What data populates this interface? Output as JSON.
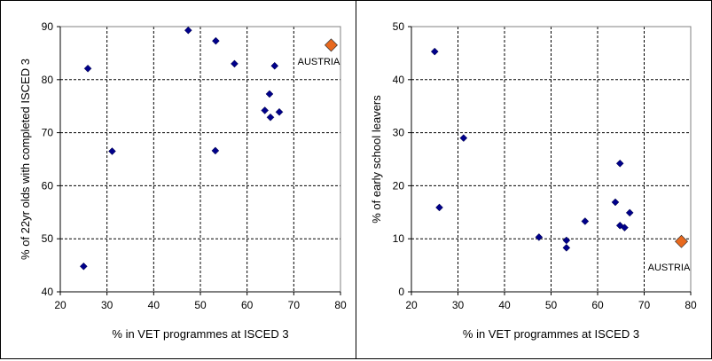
{
  "chart_data": [
    {
      "type": "scatter",
      "xlabel": "% in VET programmes at ISCED 3",
      "ylabel": "% of 22yr olds with completed ISCED 3",
      "xlim": [
        20,
        80
      ],
      "ylim": [
        40,
        90
      ],
      "xticks": [
        "20",
        "30",
        "40",
        "50",
        "60",
        "70",
        "80"
      ],
      "yticks": [
        "40",
        "50",
        "60",
        "70",
        "80",
        "90"
      ],
      "grid": true,
      "colors": {
        "points": "#00008B",
        "highlight": "#E8691E"
      },
      "points": [
        {
          "x": 25,
          "y": 44.8
        },
        {
          "x": 25.9,
          "y": 82.1
        },
        {
          "x": 31.1,
          "y": 66.5
        },
        {
          "x": 47.4,
          "y": 89.3
        },
        {
          "x": 53.3,
          "y": 87.3
        },
        {
          "x": 53.2,
          "y": 66.6
        },
        {
          "x": 57.3,
          "y": 83
        },
        {
          "x": 63.8,
          "y": 74.2
        },
        {
          "x": 64.8,
          "y": 77.3
        },
        {
          "x": 65,
          "y": 72.9
        },
        {
          "x": 65.9,
          "y": 82.6
        },
        {
          "x": 66.9,
          "y": 73.9
        }
      ],
      "highlight": {
        "x": 78,
        "y": 86.5,
        "label": "AUSTRIA"
      }
    },
    {
      "type": "scatter",
      "xlabel": "% in VET programmes at ISCED 3",
      "ylabel": "% of early school leavers",
      "xlim": [
        20,
        80
      ],
      "ylim": [
        0,
        50
      ],
      "xticks": [
        "20",
        "30",
        "40",
        "50",
        "60",
        "70",
        "80"
      ],
      "yticks": [
        "0",
        "10",
        "20",
        "30",
        "40",
        "50"
      ],
      "grid": true,
      "colors": {
        "points": "#00008B",
        "highlight": "#E8691E"
      },
      "points": [
        {
          "x": 25,
          "y": 45.3
        },
        {
          "x": 26,
          "y": 15.9
        },
        {
          "x": 31.2,
          "y": 29
        },
        {
          "x": 47.4,
          "y": 10.3
        },
        {
          "x": 53.3,
          "y": 9.7
        },
        {
          "x": 53.3,
          "y": 8.3
        },
        {
          "x": 57.3,
          "y": 13.3
        },
        {
          "x": 63.8,
          "y": 16.9
        },
        {
          "x": 64.8,
          "y": 24.2
        },
        {
          "x": 64.8,
          "y": 12.5
        },
        {
          "x": 65.8,
          "y": 12.1
        },
        {
          "x": 66.9,
          "y": 14.9
        }
      ],
      "highlight": {
        "x": 78,
        "y": 9.5,
        "label": "AUSTRIA"
      }
    }
  ]
}
